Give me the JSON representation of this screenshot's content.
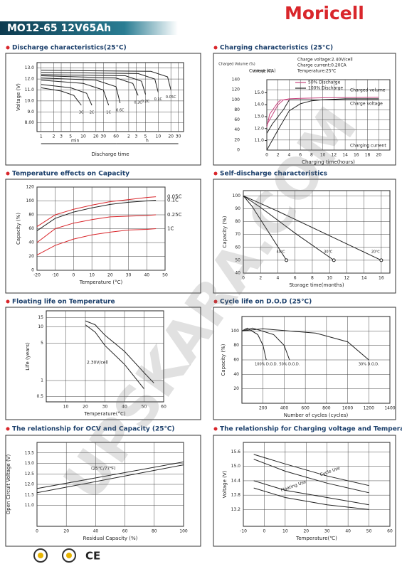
{
  "header": {
    "brand": "Moricell",
    "model": "MO12-65  12V65Ah"
  },
  "watermark": "UPSKARA.COM",
  "footer": {
    "mark": "CE"
  },
  "chart_data": [
    {
      "type": "line",
      "title": "Discharge characteristics(25°C)",
      "ylabel": "Voltage (V)",
      "xlabel": "Discharge time",
      "xscale": "log",
      "grid": true,
      "xlim": [
        0.8,
        2400
      ],
      "ylim": [
        7.2,
        13.5
      ],
      "xticks": [
        1,
        2,
        3,
        5,
        10,
        20,
        30,
        60,
        {
          "value": 120,
          "label": "2"
        },
        {
          "value": 180,
          "label": "3"
        },
        {
          "value": 300,
          "label": "5"
        },
        {
          "value": 600,
          "label": "10"
        },
        {
          "value": 1200,
          "label": "20"
        },
        {
          "value": 1800,
          "label": "30"
        }
      ],
      "yticks": [
        {
          "value": 8,
          "label": "8.00"
        },
        {
          "value": 9,
          "label": "9.0"
        },
        {
          "value": 10,
          "label": "10.0"
        },
        {
          "value": 11,
          "label": "11.0"
        },
        {
          "value": 12,
          "label": "12.0"
        },
        {
          "value": 13,
          "label": "13.0"
        }
      ],
      "annotations": [
        "min",
        "h"
      ],
      "series": [
        {
          "name": "3C",
          "color": "#222",
          "x": [
            1,
            3,
            6,
            9
          ],
          "values": [
            11.2,
            10.9,
            10.5,
            9.6
          ]
        },
        {
          "name": "2C",
          "color": "#222",
          "x": [
            1,
            5,
            12,
            16
          ],
          "values": [
            11.5,
            11.2,
            10.7,
            9.6
          ]
        },
        {
          "name": "1C",
          "color": "#222",
          "x": [
            1,
            10,
            30,
            40
          ],
          "values": [
            11.9,
            11.6,
            11.0,
            9.6
          ]
        },
        {
          "name": "0.6C",
          "color": "#222",
          "x": [
            1,
            20,
            60,
            75
          ],
          "values": [
            12.1,
            11.9,
            11.3,
            9.8
          ]
        },
        {
          "name": "0.3C",
          "color": "#222",
          "x": [
            1,
            60,
            150,
            200
          ],
          "values": [
            12.3,
            12.1,
            11.6,
            10.5
          ]
        },
        {
          "name": "0.2C",
          "color": "#222",
          "x": [
            1,
            100,
            240,
            300
          ],
          "values": [
            12.4,
            12.3,
            11.8,
            10.6
          ]
        },
        {
          "name": "0.1C",
          "color": "#222",
          "x": [
            1,
            200,
            500,
            600
          ],
          "values": [
            12.6,
            12.5,
            12.0,
            10.8
          ]
        },
        {
          "name": "0.05C",
          "color": "#222",
          "x": [
            1,
            400,
            1000,
            1200
          ],
          "values": [
            12.8,
            12.7,
            12.2,
            11.0
          ]
        }
      ]
    },
    {
      "type": "line",
      "title": "Charging characteristics (25°C)",
      "ylabel": "Charged Volume (%)",
      "y2label": "Voltage (V)",
      "xlabel": "Charging time(hours)",
      "grid": true,
      "legend": true,
      "xlim": [
        0,
        22
      ],
      "ylim": [
        0,
        140
      ],
      "y2lim": [
        10.2,
        16.1
      ],
      "xticks": [
        0,
        2,
        4,
        6,
        8,
        10,
        12,
        14,
        16,
        18,
        20
      ],
      "yticks": [
        0,
        20,
        40,
        60,
        80,
        100,
        120,
        140
      ],
      "y2ticks": [
        {
          "value": 11,
          "label": "11.0"
        },
        {
          "value": 12,
          "label": "12.0"
        },
        {
          "value": 13,
          "label": "13.0"
        },
        {
          "value": 14,
          "label": "14.0"
        },
        {
          "value": 15,
          "label": "15.0"
        }
      ],
      "annotations": [
        "Charge voltage:2.40V/cell",
        "Charge current:0.20CA",
        "Temperature:25℃",
        "Charged volume",
        "Charge voltage",
        "Charging current",
        "Current (CA)"
      ],
      "series": [
        {
          "name": "50% Discharge",
          "color": "#c8457f",
          "x": [
            0,
            1,
            2,
            3,
            4,
            6,
            10,
            20
          ],
          "values": [
            50,
            70,
            90,
            100,
            102,
            103,
            104,
            105
          ]
        },
        {
          "name": "100% Discharge",
          "color": "#222",
          "x": [
            0,
            2,
            4,
            6,
            8,
            10,
            14,
            20
          ],
          "values": [
            0,
            40,
            78,
            92,
            98,
            100,
            102,
            102
          ]
        },
        {
          "axis": "y2",
          "color": "#c8457f",
          "x": [
            0,
            0.5,
            2,
            2.5,
            3,
            6,
            20
          ],
          "values": [
            12.1,
            13.2,
            14.2,
            14.4,
            14.4,
            14.4,
            14.4
          ]
        },
        {
          "axis": "y2",
          "color": "#222",
          "x": [
            0,
            1,
            3,
            4,
            5,
            10,
            20
          ],
          "values": [
            11.6,
            12.4,
            13.6,
            14.4,
            14.4,
            14.4,
            14.4
          ]
        }
      ]
    },
    {
      "type": "line",
      "title": "Temperature effects on Capacity",
      "ylabel": "Capacity (%)",
      "xlabel": "Temperature (°C)",
      "grid": true,
      "xlim": [
        -20,
        50
      ],
      "ylim": [
        0,
        120
      ],
      "xticks": [
        -20,
        -10,
        0,
        10,
        20,
        30,
        40,
        50
      ],
      "yticks": [
        0,
        20,
        40,
        60,
        80,
        100,
        120
      ],
      "series": [
        {
          "name": "0.05C",
          "color": "#d9262b",
          "x": [
            -20,
            -10,
            0,
            10,
            20,
            30,
            40,
            45
          ],
          "values": [
            63,
            80,
            88,
            94,
            99,
            102,
            105,
            106
          ]
        },
        {
          "name": "0.1C",
          "color": "#222",
          "x": [
            -20,
            -10,
            0,
            10,
            20,
            30,
            40,
            45
          ],
          "values": [
            57,
            75,
            84,
            90,
            95,
            98,
            100,
            101
          ]
        },
        {
          "name": "0.25C",
          "color": "#d9262b",
          "x": [
            -20,
            -10,
            0,
            10,
            20,
            30,
            40,
            45
          ],
          "values": [
            40,
            60,
            68,
            73,
            77,
            78,
            79,
            80
          ]
        },
        {
          "name": "1C",
          "color": "#d9262b",
          "x": [
            -20,
            -10,
            0,
            10,
            20,
            30,
            40,
            45
          ],
          "values": [
            22,
            36,
            45,
            51,
            55,
            58,
            59,
            60
          ]
        }
      ]
    },
    {
      "type": "line",
      "title": "Self-discharge characteristics",
      "ylabel": "Capacity (%)",
      "xlabel": "Storage time(months)",
      "grid": true,
      "xlim": [
        0,
        17
      ],
      "ylim": [
        40,
        104
      ],
      "xticks": [
        0,
        2,
        4,
        6,
        8,
        10,
        12,
        14,
        16
      ],
      "yticks": [
        40,
        50,
        60,
        70,
        80,
        90,
        100
      ],
      "series": [
        {
          "name": "40℃",
          "color": "#222",
          "x": [
            0,
            1,
            3,
            5
          ],
          "values": [
            100,
            92,
            71,
            50
          ]
        },
        {
          "name": "30℃",
          "color": "#222",
          "x": [
            0,
            2,
            6,
            10.5
          ],
          "values": [
            100,
            91,
            71,
            50
          ]
        },
        {
          "name": "20℃",
          "color": "#222",
          "x": [
            0,
            4,
            10,
            16
          ],
          "values": [
            100,
            88,
            69,
            50
          ]
        }
      ]
    },
    {
      "type": "line",
      "title": "Floating life on Temperature",
      "ylabel": "Life (years)",
      "xlabel": "Temperature(°C)",
      "yscale": "log",
      "grid": true,
      "xlim": [
        0,
        60
      ],
      "ylim": [
        0.4,
        20
      ],
      "xticks": [
        10,
        20,
        30,
        40,
        50,
        60
      ],
      "yticks": [
        0.5,
        1,
        5,
        10,
        15
      ],
      "annotations": [
        "2.30V/cell"
      ],
      "series": [
        {
          "color": "#222",
          "x": [
            20,
            25,
            30,
            40,
            50,
            55
          ],
          "values": [
            13,
            11,
            7,
            3.5,
            1.4,
            0.9
          ]
        },
        {
          "color": "#222",
          "x": [
            20,
            25,
            30,
            40,
            50
          ],
          "values": [
            11,
            8,
            4.5,
            2,
            0.7
          ]
        }
      ]
    },
    {
      "type": "line",
      "title": "Cycle life on D.O.D (25℃)",
      "ylabel": "Capacity (%)",
      "xlabel": "Number of cycles (cycles)",
      "grid": true,
      "xlim": [
        0,
        1400
      ],
      "ylim": [
        0,
        120
      ],
      "xticks": [
        200,
        400,
        600,
        800,
        1000,
        1200,
        1400
      ],
      "yticks": [
        20,
        40,
        60,
        80,
        100
      ],
      "series": [
        {
          "name": "100% D.O.D.",
          "color": "#222",
          "x": [
            0,
            50,
            150,
            200,
            230
          ],
          "values": [
            100,
            104,
            95,
            80,
            60
          ]
        },
        {
          "name": "50% D.O.D.",
          "color": "#222",
          "x": [
            0,
            100,
            300,
            400,
            450
          ],
          "values": [
            100,
            104,
            95,
            80,
            60
          ]
        },
        {
          "name": "30% D.O.D.",
          "color": "#222",
          "x": [
            0,
            200,
            700,
            1000,
            1200
          ],
          "values": [
            100,
            103,
            97,
            85,
            60
          ]
        }
      ]
    },
    {
      "type": "line",
      "title": "The relationship for OCV and Capacity (25℃)",
      "ylabel": "Open Circuit Voltage (V)",
      "xlabel": "Residual Capacity (%)",
      "grid": true,
      "xlim": [
        0,
        100
      ],
      "ylim": [
        10,
        14
      ],
      "xticks": [
        0,
        20,
        40,
        60,
        80,
        100
      ],
      "yticks": [
        {
          "value": 11,
          "label": "11.0"
        },
        11.5,
        {
          "value": 12,
          "label": "12.0"
        },
        12.5,
        {
          "value": 13,
          "label": "13.0"
        },
        13.5
      ],
      "annotations": [
        "(25℃/77℉)"
      ],
      "series": [
        {
          "color": "#222",
          "x": [
            0,
            100
          ],
          "values": [
            11.8,
            13.07
          ]
        },
        {
          "color": "#222",
          "x": [
            0,
            100
          ],
          "values": [
            11.6,
            12.93
          ]
        }
      ]
    },
    {
      "type": "line",
      "title": "The relationship for Charging voltage and Temperature",
      "ylabel": "Voltage (V)",
      "xlabel": "Temperature(℃)",
      "grid": true,
      "xlim": [
        -10,
        60
      ],
      "ylim": [
        12.5,
        16
      ],
      "xticks": [
        -10,
        0,
        10,
        20,
        30,
        40,
        50,
        60
      ],
      "yticks": [
        13.2,
        13.8,
        14.4,
        {
          "value": 15,
          "label": "15.0"
        },
        15.6
      ],
      "annotations": [
        "Cycle Use",
        "Floating Use"
      ],
      "series": [
        {
          "color": "#222",
          "x": [
            -5,
            10,
            30,
            50
          ],
          "values": [
            15.5,
            15.1,
            14.6,
            14.2
          ]
        },
        {
          "color": "#222",
          "x": [
            -5,
            10,
            30,
            50
          ],
          "values": [
            15.3,
            14.8,
            14.3,
            13.9
          ]
        },
        {
          "color": "#222",
          "x": [
            -5,
            10,
            30,
            50
          ],
          "values": [
            14.4,
            14.0,
            13.7,
            13.4
          ]
        },
        {
          "color": "#222",
          "x": [
            -5,
            10,
            30,
            50
          ],
          "values": [
            14.1,
            13.7,
            13.4,
            13.2
          ]
        }
      ]
    }
  ]
}
